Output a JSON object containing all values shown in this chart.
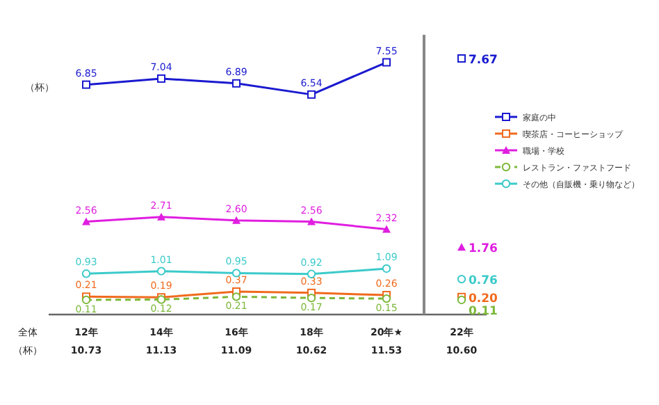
{
  "chart_data": {
    "type": "line",
    "ylabel": "（杯）",
    "categories": [
      "12年",
      "14年",
      "16年",
      "18年",
      "20年★",
      "22年"
    ],
    "series": [
      {
        "name": "家庭の中",
        "color": "#1a1ad0",
        "marker": "square",
        "values": [
          6.85,
          7.04,
          6.89,
          6.54,
          7.55,
          null
        ],
        "value_labels": [
          "6.85",
          "7.04",
          "6.89",
          "6.54",
          "7.55",
          null
        ]
      },
      {
        "name": "喫茶店・コーヒーショップ",
        "color": "#f06a1e",
        "marker": "square",
        "values": [
          0.21,
          0.19,
          0.37,
          0.33,
          0.26,
          null
        ],
        "value_labels": [
          "0.21",
          "0.19",
          "0.37",
          "0.33",
          "0.26",
          null
        ]
      },
      {
        "name": "職場・学校",
        "color": "#e01ee0",
        "marker": "triangle",
        "values": [
          2.56,
          2.71,
          2.6,
          2.56,
          2.32,
          null
        ],
        "value_labels": [
          "2.56",
          "2.71",
          "2.60",
          "2.56",
          "2.32",
          null
        ]
      },
      {
        "name": "レストラン・ファストフード",
        "color": "#7cb83a",
        "marker": "circle",
        "line_style": "dashed",
        "values": [
          0.11,
          0.12,
          0.21,
          0.17,
          0.15,
          null
        ],
        "value_labels": [
          "0.11",
          "0.12",
          "0.21",
          "0.17",
          "0.15",
          null
        ]
      },
      {
        "name": "その他（自販機・乗り物など）",
        "color": "#3ccaca",
        "marker": "circle",
        "values": [
          0.93,
          1.01,
          0.95,
          0.92,
          1.09,
          null
        ],
        "value_labels": [
          "0.93",
          "1.01",
          "0.95",
          "0.92",
          "1.09",
          null
        ]
      },
      {
        "type": "scatter",
        "x": [
          "22年"
        ],
        "color": "#1a1ad0",
        "marker": "square",
        "values": [
          7.67
        ],
        "value_labels": [
          "7.67"
        ]
      },
      {
        "type": "scatter",
        "x": [
          "22年"
        ],
        "color": "#f06a1e",
        "marker": "square",
        "values": [
          0.2
        ],
        "value_labels": [
          "0.20"
        ]
      },
      {
        "type": "scatter",
        "x": [
          "22年"
        ],
        "color": "#e01ee0",
        "marker": "triangle",
        "values": [
          1.76
        ],
        "value_labels": [
          "1.76"
        ]
      },
      {
        "type": "scatter",
        "x": [
          "22年"
        ],
        "color": "#7cb83a",
        "marker": "circle",
        "values": [
          0.11
        ],
        "value_labels": [
          "0.11"
        ]
      },
      {
        "type": "scatter",
        "x": [
          "22年"
        ],
        "color": "#3ccaca",
        "marker": "circle",
        "values": [
          0.76
        ],
        "value_labels": [
          "0.76"
        ]
      }
    ],
    "legend": "right",
    "tick_labels": "x",
    "annotations": [
      "全体",
      "（杯）",
      "10.73",
      "11.13",
      "11.09",
      "10.62",
      "11.53",
      "10.60"
    ]
  }
}
